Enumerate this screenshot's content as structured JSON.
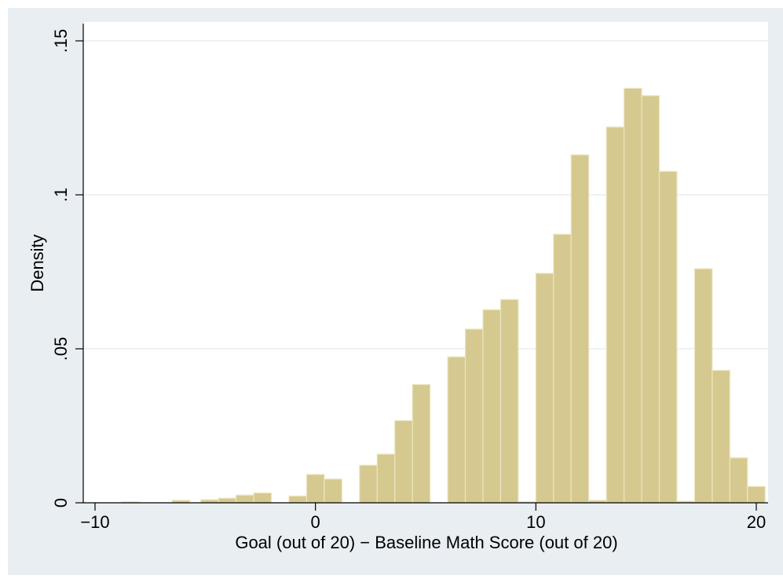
{
  "chart_data": {
    "type": "bar",
    "title": "",
    "xlabel": "Goal (out of 20) − Baseline Math Score (out of 20)",
    "ylabel": "Density",
    "xlim": [
      -10.5,
      20.6
    ],
    "ylim": [
      0,
      0.15
    ],
    "x_ticks": [
      {
        "value": -10,
        "label": "−10"
      },
      {
        "value": 0,
        "label": "0"
      },
      {
        "value": 10,
        "label": "10"
      },
      {
        "value": 20,
        "label": "20"
      }
    ],
    "y_ticks": [
      {
        "value": 0,
        "label": "0"
      },
      {
        "value": 0.05,
        "label": ".05"
      },
      {
        "value": 0.1,
        "label": ".1"
      },
      {
        "value": 0.15,
        "label": ".15"
      }
    ],
    "grid": true,
    "bin_width": 0.8,
    "bins": [
      {
        "x": -8.4,
        "density": 0.0003
      },
      {
        "x": -6.1,
        "density": 0.0008
      },
      {
        "x": -4.8,
        "density": 0.001
      },
      {
        "x": -4.0,
        "density": 0.0015
      },
      {
        "x": -3.2,
        "density": 0.0025
      },
      {
        "x": -2.4,
        "density": 0.0032
      },
      {
        "x": -0.8,
        "density": 0.0022
      },
      {
        "x": 0.0,
        "density": 0.0092
      },
      {
        "x": 0.8,
        "density": 0.0077
      },
      {
        "x": 2.4,
        "density": 0.0122
      },
      {
        "x": 3.2,
        "density": 0.0158
      },
      {
        "x": 4.0,
        "density": 0.0267
      },
      {
        "x": 4.8,
        "density": 0.0384
      },
      {
        "x": 6.4,
        "density": 0.0474
      },
      {
        "x": 7.2,
        "density": 0.0564
      },
      {
        "x": 8.0,
        "density": 0.0627
      },
      {
        "x": 8.8,
        "density": 0.066
      },
      {
        "x": 9.6,
        "density": 0.0003
      },
      {
        "x": 10.4,
        "density": 0.0745
      },
      {
        "x": 11.2,
        "density": 0.0872
      },
      {
        "x": 12.0,
        "density": 0.113
      },
      {
        "x": 12.8,
        "density": 0.0008
      },
      {
        "x": 13.6,
        "density": 0.122
      },
      {
        "x": 14.4,
        "density": 0.1346
      },
      {
        "x": 15.2,
        "density": 0.1322
      },
      {
        "x": 16.0,
        "density": 0.1076
      },
      {
        "x": 16.8,
        "density": 0.0005
      },
      {
        "x": 17.6,
        "density": 0.076
      },
      {
        "x": 18.4,
        "density": 0.043
      },
      {
        "x": 19.2,
        "density": 0.0146
      },
      {
        "x": 20.0,
        "density": 0.0053
      }
    ],
    "colors": {
      "bar_fill": "#d5c98f",
      "bar_stroke": "#ece5c2",
      "outer_background": "#e9eef2",
      "plot_background": "#ffffff",
      "grid": "#e3eaee",
      "axis": "#000000"
    }
  }
}
